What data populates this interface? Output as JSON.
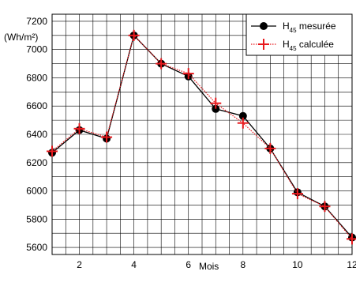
{
  "chart_data": {
    "type": "line",
    "xlabel": "Mois",
    "ylabel": "(Wh/m²)",
    "x": [
      1,
      2,
      3,
      4,
      5,
      6,
      7,
      8,
      9,
      10,
      11,
      12
    ],
    "xlim": [
      1,
      12
    ],
    "xticks": [
      2,
      4,
      6,
      8,
      10,
      12
    ],
    "ylim": [
      5550,
      7250
    ],
    "yticks": [
      5600,
      5800,
      6000,
      6200,
      6400,
      6600,
      6800,
      7000,
      7200
    ],
    "grid": true,
    "legend_position": "top-right",
    "series": [
      {
        "name_main": "H",
        "name_sub": "45",
        "name_rest": " mesurée",
        "color": "#000000",
        "marker": "circle",
        "line": "solid",
        "values": [
          6270,
          6430,
          6370,
          7100,
          6900,
          6810,
          6580,
          6530,
          6300,
          5990,
          5890,
          5670
        ]
      },
      {
        "name_main": "H",
        "name_sub": "45",
        "name_rest": " calculée",
        "color": "#e8181c",
        "marker": "plus",
        "line": "dotted",
        "values": [
          6280,
          6440,
          6380,
          7100,
          6900,
          6830,
          6620,
          6480,
          6300,
          5980,
          5890,
          5660
        ]
      }
    ]
  }
}
